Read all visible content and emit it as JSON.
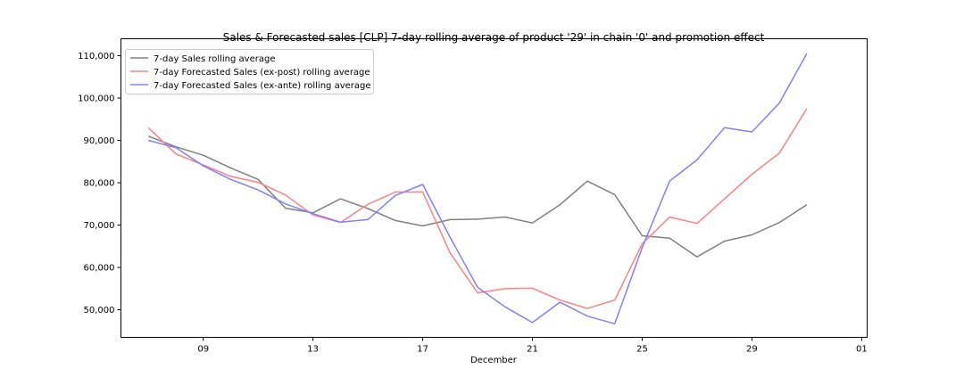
{
  "chart_data": {
    "type": "line",
    "title": "Sales & Forecasted sales [CLP] 7-day rolling average of product '29' in chain '0' and promotion effect",
    "xlabel": "December",
    "ylabel": "",
    "x_start_day": 7,
    "x_tick_days": [
      9,
      13,
      17,
      21,
      25,
      29,
      33
    ],
    "x_tick_labels": [
      "09",
      "13",
      "17",
      "21",
      "25",
      "29",
      "01"
    ],
    "xlim_days": [
      6.0,
      33.2
    ],
    "ylim": [
      43500,
      114000
    ],
    "y_ticks": [
      50000,
      60000,
      70000,
      80000,
      90000,
      100000,
      110000
    ],
    "y_tick_labels": [
      "50,000",
      "60,000",
      "70,000",
      "80,000",
      "90,000",
      "100,000",
      "110,000"
    ],
    "legend_position": "top-left",
    "grid": false,
    "series": [
      {
        "name": "7-day Sales rolling average",
        "color": "#808080",
        "values": [
          91000,
          88500,
          86500,
          83500,
          80800,
          74000,
          72900,
          76200,
          73900,
          71100,
          69800,
          71300,
          71400,
          71900,
          70500,
          74800,
          80400,
          77200,
          67500,
          66900,
          62500,
          66200,
          67700,
          70600,
          74800
        ]
      },
      {
        "name": "7-day Forecasted Sales (ex-post) rolling average",
        "color": "#ff8080",
        "values": [
          93000,
          86800,
          84200,
          81500,
          80100,
          77100,
          72400,
          70600,
          74900,
          77800,
          77800,
          63400,
          54000,
          55000,
          55100,
          52300,
          50300,
          52300,
          65600,
          71900,
          70400,
          76200,
          82000,
          87000,
          97500
        ]
      },
      {
        "name": "7-day Forecasted Sales (ex-ante) rolling average",
        "color": "#8080ff",
        "values": [
          90000,
          88300,
          84000,
          80800,
          78300,
          75000,
          72700,
          70700,
          71300,
          77000,
          79600,
          67100,
          55300,
          50700,
          47000,
          51800,
          48500,
          46700,
          64700,
          80400,
          85400,
          93000,
          92000,
          98800,
          110500
        ]
      }
    ]
  }
}
